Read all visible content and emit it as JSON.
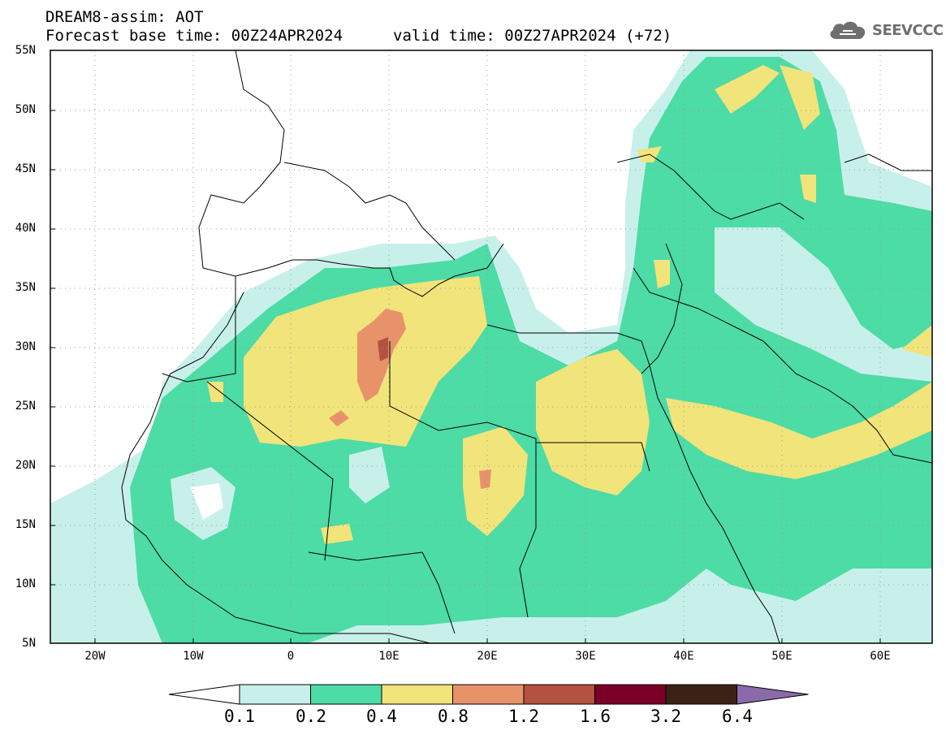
{
  "header": {
    "product": "DREAM8-assim: AOT",
    "forecast_base": "Forecast base time: 00Z24APR2024",
    "valid_time": "valid time: 00Z27APR2024 (+72)"
  },
  "logo": {
    "text": "SEEVCCC",
    "icon": "cloud-icon",
    "color": "#6f6f6f"
  },
  "map": {
    "lat_labels": [
      "55N",
      "50N",
      "45N",
      "40N",
      "35N",
      "30N",
      "25N",
      "20N",
      "15N",
      "10N",
      "5N"
    ],
    "lon_labels": [
      "20W",
      "10W",
      "0",
      "10E",
      "20E",
      "30E",
      "40E",
      "50E",
      "60E"
    ],
    "lat_range": [
      5,
      55
    ],
    "lon_range": [
      -25,
      65
    ],
    "grid": "dotted"
  },
  "colorbar": {
    "labels": [
      "0.1",
      "0.2",
      "0.4",
      "0.8",
      "1.2",
      "1.6",
      "3.2",
      "6.4"
    ],
    "colors": [
      "#ffffff",
      "#c8f0ea",
      "#4ddba6",
      "#f1e47b",
      "#e8926a",
      "#b5523f",
      "#7b0027",
      "#3a2215",
      "#8a6aa8"
    ]
  }
}
